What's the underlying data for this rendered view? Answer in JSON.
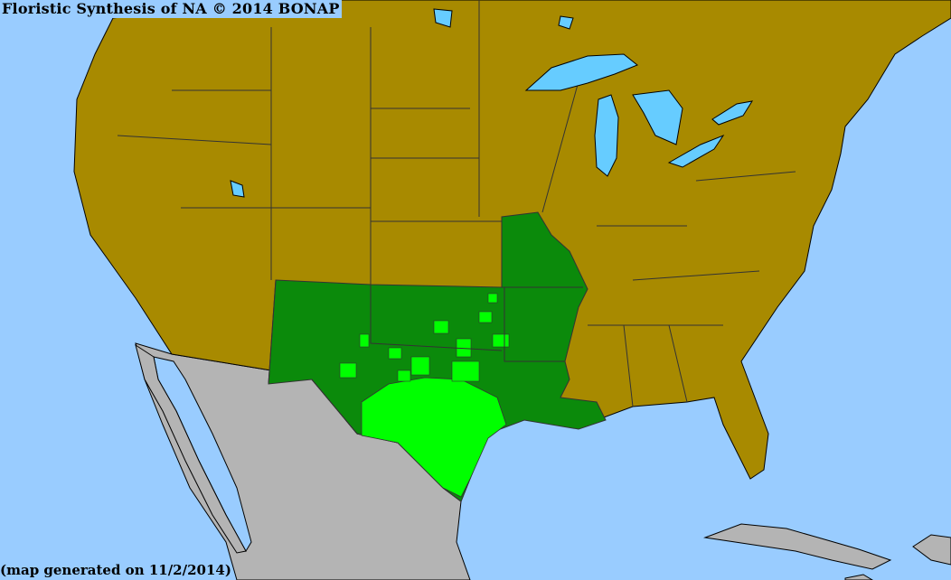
{
  "title": "Floristic Synthesis of NA © 2014 BONAP",
  "footer": "(map generated on 11/2/2014)",
  "colors": {
    "water": "#99ccff",
    "lakes": "#66ccff",
    "absent_native_range": "#a88a00",
    "outside_coverage": "#b4b4b4",
    "present_state": "#0b8a0b",
    "present_county": "#00ff00",
    "borders": "#4a4a66"
  }
}
